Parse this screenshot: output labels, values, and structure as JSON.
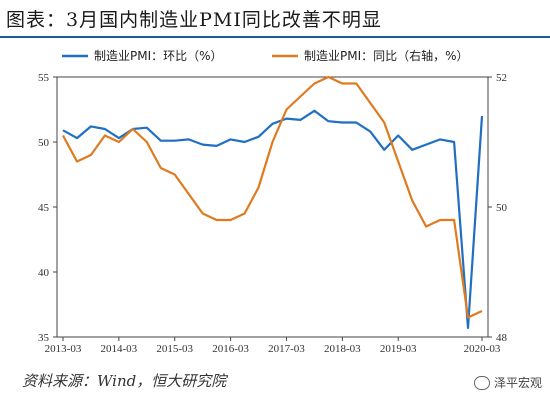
{
  "title": "图表：3月国内制造业PMI同比改善不明显",
  "source": "资料来源：Wind，恒大研究院",
  "watermark": "泽平宏观",
  "colors": {
    "left_series": "#1f6fc2",
    "right_series": "#e07a1f",
    "frame": "#1f5c99"
  },
  "chart_data": {
    "type": "line",
    "x": [
      "2013-03",
      "2013-06",
      "2013-09",
      "2013-12",
      "2014-03",
      "2014-06",
      "2014-09",
      "2014-12",
      "2015-03",
      "2015-06",
      "2015-09",
      "2015-12",
      "2016-03",
      "2016-06",
      "2016-09",
      "2016-12",
      "2017-03",
      "2017-06",
      "2017-09",
      "2017-12",
      "2018-03",
      "2018-06",
      "2018-09",
      "2018-12",
      "2019-03",
      "2019-06",
      "2019-09",
      "2019-12",
      "2020-01",
      "2020-02",
      "2020-03"
    ],
    "x_tick_labels": [
      "2013-03",
      "2014-03",
      "2015-03",
      "2016-03",
      "2017-03",
      "2018-03",
      "2019-03",
      "2020-03"
    ],
    "left_axis": {
      "ylim": [
        35,
        55
      ],
      "ticks": [
        "35",
        "40",
        "45",
        "50",
        "55"
      ]
    },
    "right_axis": {
      "ylim": [
        48,
        52
      ],
      "ticks": [
        "48",
        "50",
        "52"
      ]
    },
    "series": [
      {
        "name": "制造业PMI：环比（%）",
        "axis": "left",
        "values": [
          50.9,
          50.3,
          51.2,
          51.0,
          50.3,
          51.0,
          51.1,
          50.1,
          50.1,
          50.2,
          49.8,
          49.7,
          50.2,
          50.0,
          50.4,
          51.4,
          51.8,
          51.7,
          52.4,
          51.6,
          51.5,
          51.5,
          50.8,
          49.4,
          50.5,
          49.4,
          49.8,
          50.2,
          50.0,
          35.7,
          52.0
        ]
      },
      {
        "name": "制造业PMI：同比（右轴，%）",
        "axis": "right",
        "values": [
          51.1,
          50.7,
          50.8,
          51.1,
          51.0,
          51.2,
          51.0,
          50.6,
          50.5,
          50.2,
          49.9,
          49.8,
          49.8,
          49.9,
          50.3,
          51.0,
          51.5,
          51.7,
          51.9,
          52.0,
          51.9,
          51.9,
          51.6,
          51.3,
          50.7,
          50.1,
          49.7,
          49.8,
          49.8,
          48.3,
          48.4
        ]
      }
    ]
  }
}
